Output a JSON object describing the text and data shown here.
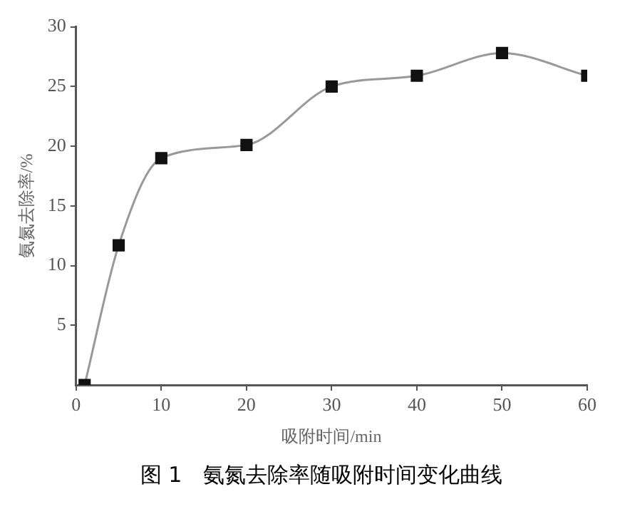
{
  "chart_data": {
    "type": "line",
    "title": "图 1　氨氮去除率随吸附时间变化曲线",
    "xlabel": "吸附时间/min",
    "ylabel": "氨氮去除率/%",
    "x": [
      1,
      5,
      10,
      20,
      30,
      40,
      50,
      60
    ],
    "series": [
      {
        "color": "#111111",
        "values": [
          0,
          11.7,
          19,
          20.1,
          25,
          25.9,
          27.8,
          25.9
        ]
      }
    ],
    "xlim": [
      0,
      60
    ],
    "xticks": [
      0,
      10,
      20,
      30,
      40,
      50,
      60
    ],
    "ylim": [
      0,
      30
    ],
    "yticks": [
      5,
      10,
      15,
      20,
      25,
      30
    ],
    "grid": false,
    "legend": false,
    "marker": "square",
    "line_style": "solid"
  }
}
